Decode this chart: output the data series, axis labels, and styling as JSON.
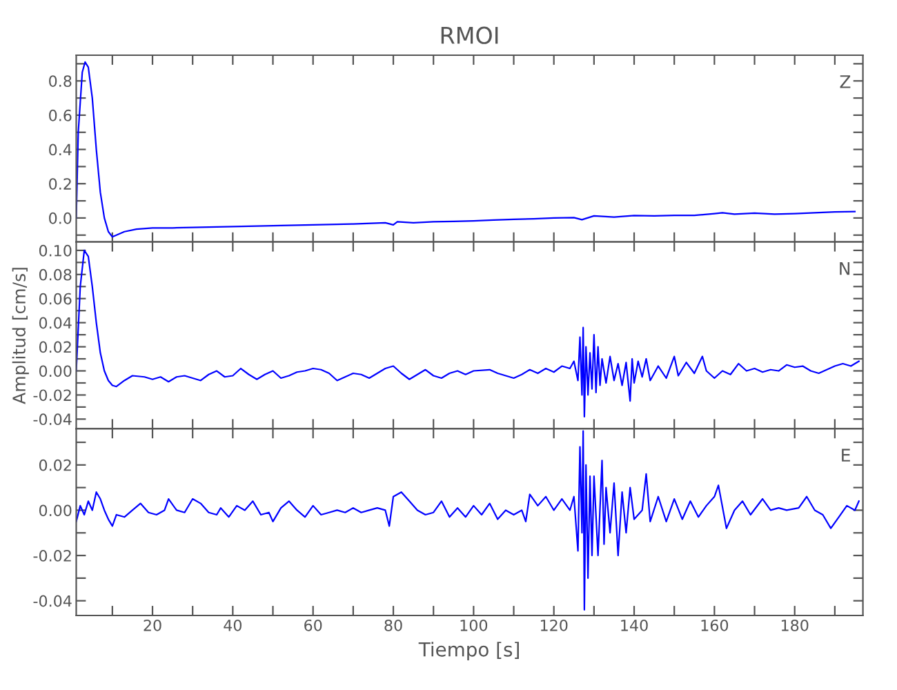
{
  "chart_data": [
    {
      "type": "line",
      "title": "RMOI",
      "annotations": [
        "Z"
      ],
      "tick_labels": "y",
      "xlim": [
        1,
        197
      ],
      "xticks": [
        {
          "value": 10,
          "label": null
        },
        20,
        {
          "value": 30,
          "label": null
        },
        40,
        {
          "value": 50,
          "label": null
        },
        60,
        {
          "value": 70,
          "label": null
        },
        80,
        {
          "value": 90,
          "label": null
        },
        100,
        {
          "value": 110,
          "label": null
        },
        120,
        {
          "value": 130,
          "label": null
        },
        140,
        {
          "value": 150,
          "label": null
        },
        160,
        {
          "value": 170,
          "label": null
        },
        180,
        {
          "value": 190,
          "label": null
        }
      ],
      "ylim": [
        -0.14,
        0.95
      ],
      "yticks": [
        {
          "value": -0.1,
          "label": null
        },
        {
          "value": 0,
          "label": "0.0"
        },
        {
          "value": 0.1,
          "label": null
        },
        {
          "value": 0.2,
          "label": "0.2"
        },
        {
          "value": 0.3,
          "label": null
        },
        {
          "value": 0.4,
          "label": "0.4"
        },
        {
          "value": 0.5,
          "label": null
        },
        {
          "value": 0.6,
          "label": "0.6"
        },
        {
          "value": 0.7,
          "label": null
        },
        {
          "value": 0.8,
          "label": "0.8"
        },
        {
          "value": 0.9,
          "label": null
        }
      ],
      "x": [
        1,
        1.5,
        2.5,
        3.2,
        4,
        5,
        6,
        7,
        8,
        9,
        10,
        11,
        13,
        16,
        20,
        25,
        30,
        40,
        50,
        60,
        70,
        78,
        80,
        81,
        85,
        90,
        95,
        100,
        105,
        110,
        115,
        120,
        125,
        127,
        130,
        135,
        140,
        145,
        150,
        155,
        160,
        162,
        165,
        170,
        175,
        180,
        185,
        190,
        195
      ],
      "series": [
        {
          "color": "#0000ff",
          "values": [
            0.0,
            0.5,
            0.85,
            0.91,
            0.88,
            0.7,
            0.4,
            0.15,
            0.0,
            -0.08,
            -0.11,
            -0.1,
            -0.08,
            -0.065,
            -0.058,
            -0.058,
            -0.055,
            -0.05,
            -0.045,
            -0.04,
            -0.035,
            -0.028,
            -0.04,
            -0.022,
            -0.028,
            -0.022,
            -0.02,
            -0.017,
            -0.012,
            -0.008,
            -0.005,
            0.0,
            0.002,
            -0.01,
            0.012,
            0.005,
            0.014,
            0.012,
            0.015,
            0.015,
            0.025,
            0.03,
            0.022,
            0.028,
            0.022,
            0.025,
            0.03,
            0.035,
            0.037
          ]
        }
      ]
    },
    {
      "type": "line",
      "ylabel": "Amplitud [cm/s]",
      "annotations": [
        "N"
      ],
      "tick_labels": "y",
      "xlim": [
        1,
        197
      ],
      "xticks": [
        {
          "value": 10,
          "label": null
        },
        20,
        {
          "value": 30,
          "label": null
        },
        40,
        {
          "value": 50,
          "label": null
        },
        60,
        {
          "value": 70,
          "label": null
        },
        80,
        {
          "value": 90,
          "label": null
        },
        100,
        {
          "value": 110,
          "label": null
        },
        120,
        {
          "value": 130,
          "label": null
        },
        140,
        {
          "value": 150,
          "label": null
        },
        160,
        {
          "value": 170,
          "label": null
        },
        180,
        {
          "value": 190,
          "label": null
        }
      ],
      "ylim": [
        -0.048,
        0.107
      ],
      "yticks": [
        {
          "value": -0.04,
          "label": "-0.04"
        },
        {
          "value": -0.03,
          "label": null
        },
        {
          "value": -0.02,
          "label": "-0.02"
        },
        {
          "value": -0.01,
          "label": null
        },
        {
          "value": 0,
          "label": "0.00"
        },
        {
          "value": 0.01,
          "label": null
        },
        {
          "value": 0.02,
          "label": "0.02"
        },
        {
          "value": 0.03,
          "label": null
        },
        {
          "value": 0.04,
          "label": "0.04"
        },
        {
          "value": 0.05,
          "label": null
        },
        {
          "value": 0.06,
          "label": "0.06"
        },
        {
          "value": 0.07,
          "label": null
        },
        {
          "value": 0.08,
          "label": "0.08"
        },
        {
          "value": 0.09,
          "label": null
        },
        {
          "value": 0.1,
          "label": "0.10"
        }
      ],
      "x": [
        1,
        2,
        3,
        4,
        5,
        6,
        7,
        8,
        9,
        10,
        11,
        13,
        15,
        18,
        20,
        22,
        24,
        26,
        28,
        30,
        32,
        34,
        36,
        38,
        40,
        42,
        44,
        46,
        48,
        50,
        52,
        54,
        56,
        58,
        60,
        62,
        64,
        66,
        68,
        70,
        72,
        74,
        78,
        80,
        82,
        84,
        86,
        88,
        90,
        92,
        94,
        96,
        98,
        100,
        104,
        106,
        110,
        112,
        114,
        116,
        118,
        120,
        122,
        124,
        125,
        126,
        126.5,
        127,
        127.3,
        127.6,
        128,
        128.5,
        129,
        129.5,
        130,
        130.5,
        131,
        131.5,
        132,
        133,
        134,
        135,
        136,
        137,
        138,
        139,
        139.5,
        140,
        141,
        142,
        143,
        144,
        146,
        148,
        150,
        151,
        153,
        155,
        157,
        158,
        160,
        162,
        164,
        166,
        168,
        170,
        172,
        174,
        176,
        178,
        180,
        182,
        184,
        186,
        188,
        190,
        192,
        194,
        196
      ],
      "series": [
        {
          "color": "#0000ff",
          "values": [
            0.0,
            0.07,
            0.1,
            0.095,
            0.07,
            0.04,
            0.015,
            0.0,
            -0.008,
            -0.012,
            -0.013,
            -0.008,
            -0.004,
            -0.005,
            -0.007,
            -0.005,
            -0.009,
            -0.005,
            -0.004,
            -0.006,
            -0.008,
            -0.003,
            0.0,
            -0.005,
            -0.004,
            0.002,
            -0.003,
            -0.007,
            -0.003,
            0.0,
            -0.006,
            -0.004,
            -0.001,
            0.0,
            0.002,
            0.001,
            -0.002,
            -0.008,
            -0.005,
            -0.002,
            -0.003,
            -0.006,
            0.002,
            0.004,
            -0.002,
            -0.007,
            -0.003,
            0.001,
            -0.004,
            -0.006,
            -0.002,
            0.0,
            -0.003,
            0.0,
            0.001,
            -0.002,
            -0.006,
            -0.003,
            0.001,
            -0.002,
            0.002,
            -0.001,
            0.004,
            0.002,
            0.008,
            -0.008,
            0.028,
            -0.02,
            0.036,
            -0.038,
            0.02,
            -0.02,
            0.015,
            -0.015,
            0.03,
            -0.018,
            0.02,
            -0.012,
            0.01,
            -0.01,
            0.012,
            -0.008,
            0.006,
            -0.012,
            0.007,
            -0.025,
            0.01,
            -0.01,
            0.008,
            -0.005,
            0.01,
            -0.008,
            0.004,
            -0.006,
            0.012,
            -0.004,
            0.007,
            -0.002,
            0.012,
            0.0,
            -0.006,
            0.0,
            -0.003,
            0.006,
            0.0,
            0.002,
            -0.001,
            0.001,
            0.0,
            0.005,
            0.003,
            0.004,
            0.0,
            -0.002,
            0.001,
            0.004,
            0.006,
            0.004,
            0.008
          ]
        }
      ]
    },
    {
      "type": "line",
      "xlabel": "Tiempo [s]",
      "annotations": [
        "E"
      ],
      "xlim": [
        1,
        197
      ],
      "xticks": [
        {
          "value": 10,
          "label": null
        },
        20,
        {
          "value": 30,
          "label": null
        },
        40,
        {
          "value": 50,
          "label": null
        },
        60,
        {
          "value": 70,
          "label": null
        },
        80,
        {
          "value": 90,
          "label": null
        },
        100,
        {
          "value": 110,
          "label": null
        },
        120,
        {
          "value": 130,
          "label": null
        },
        140,
        {
          "value": 150,
          "label": null
        },
        160,
        {
          "value": 170,
          "label": null
        },
        180,
        {
          "value": 190,
          "label": null
        }
      ],
      "ylim": [
        -0.0465,
        0.036
      ],
      "yticks": [
        {
          "value": -0.04,
          "label": "-0.04"
        },
        {
          "value": -0.03,
          "label": null
        },
        {
          "value": -0.02,
          "label": "-0.02"
        },
        {
          "value": -0.01,
          "label": null
        },
        {
          "value": 0,
          "label": "0.00"
        },
        {
          "value": 0.01,
          "label": null
        },
        {
          "value": 0.02,
          "label": "0.02"
        },
        {
          "value": 0.03,
          "label": null
        }
      ],
      "x": [
        1,
        2,
        3,
        4,
        5,
        6,
        7,
        8,
        9,
        10,
        11,
        13,
        15,
        17,
        19,
        21,
        23,
        24,
        26,
        28,
        30,
        32,
        34,
        36,
        37,
        39,
        41,
        43,
        45,
        47,
        49,
        50,
        52,
        54,
        56,
        58,
        60,
        62,
        64,
        66,
        68,
        70,
        72,
        74,
        76,
        78,
        79,
        80,
        82,
        84,
        86,
        88,
        90,
        92,
        94,
        96,
        98,
        100,
        102,
        104,
        106,
        108,
        110,
        112,
        113,
        114,
        116,
        118,
        120,
        122,
        124,
        125,
        126,
        126.5,
        127,
        127.3,
        127.6,
        128,
        128.5,
        129,
        129.5,
        130,
        131,
        132,
        132.5,
        133,
        134,
        135,
        136,
        137,
        138,
        139,
        140,
        142,
        143,
        144,
        146,
        148,
        150,
        152,
        154,
        156,
        158,
        160,
        161,
        163,
        165,
        167,
        169,
        172,
        174,
        176,
        178,
        181,
        183,
        185,
        187,
        189,
        191,
        193,
        195,
        196
      ],
      "series": [
        {
          "color": "#0000ff",
          "values": [
            -0.005,
            0.002,
            -0.002,
            0.004,
            0.0,
            0.008,
            0.005,
            0.0,
            -0.004,
            -0.007,
            -0.002,
            -0.003,
            0.0,
            0.003,
            -0.001,
            -0.002,
            0.0,
            0.005,
            0.0,
            -0.001,
            0.005,
            0.003,
            -0.001,
            -0.002,
            0.001,
            -0.003,
            0.002,
            0.0,
            0.004,
            -0.002,
            -0.001,
            -0.005,
            0.001,
            0.004,
            0.0,
            -0.003,
            0.002,
            -0.002,
            -0.001,
            0.0,
            -0.001,
            0.001,
            -0.001,
            0.0,
            0.001,
            0.0,
            -0.007,
            0.006,
            0.008,
            0.004,
            0.0,
            -0.002,
            -0.001,
            0.004,
            -0.003,
            0.001,
            -0.003,
            0.002,
            -0.002,
            0.003,
            -0.004,
            0.0,
            -0.002,
            0.0,
            -0.005,
            0.007,
            0.002,
            0.006,
            0.0,
            0.005,
            0.0,
            0.006,
            -0.018,
            0.028,
            -0.01,
            0.035,
            -0.044,
            0.02,
            -0.03,
            0.015,
            -0.02,
            0.015,
            -0.02,
            0.022,
            -0.015,
            0.01,
            -0.01,
            0.012,
            -0.02,
            0.008,
            -0.01,
            0.01,
            -0.004,
            0.0,
            0.016,
            -0.005,
            0.006,
            -0.005,
            0.005,
            -0.004,
            0.004,
            -0.003,
            0.002,
            0.006,
            0.011,
            -0.008,
            0.0,
            0.004,
            -0.002,
            0.005,
            0.0,
            0.001,
            0.0,
            0.001,
            0.006,
            0.0,
            -0.002,
            -0.008,
            -0.003,
            0.002,
            0.0,
            0.004
          ]
        }
      ]
    }
  ]
}
